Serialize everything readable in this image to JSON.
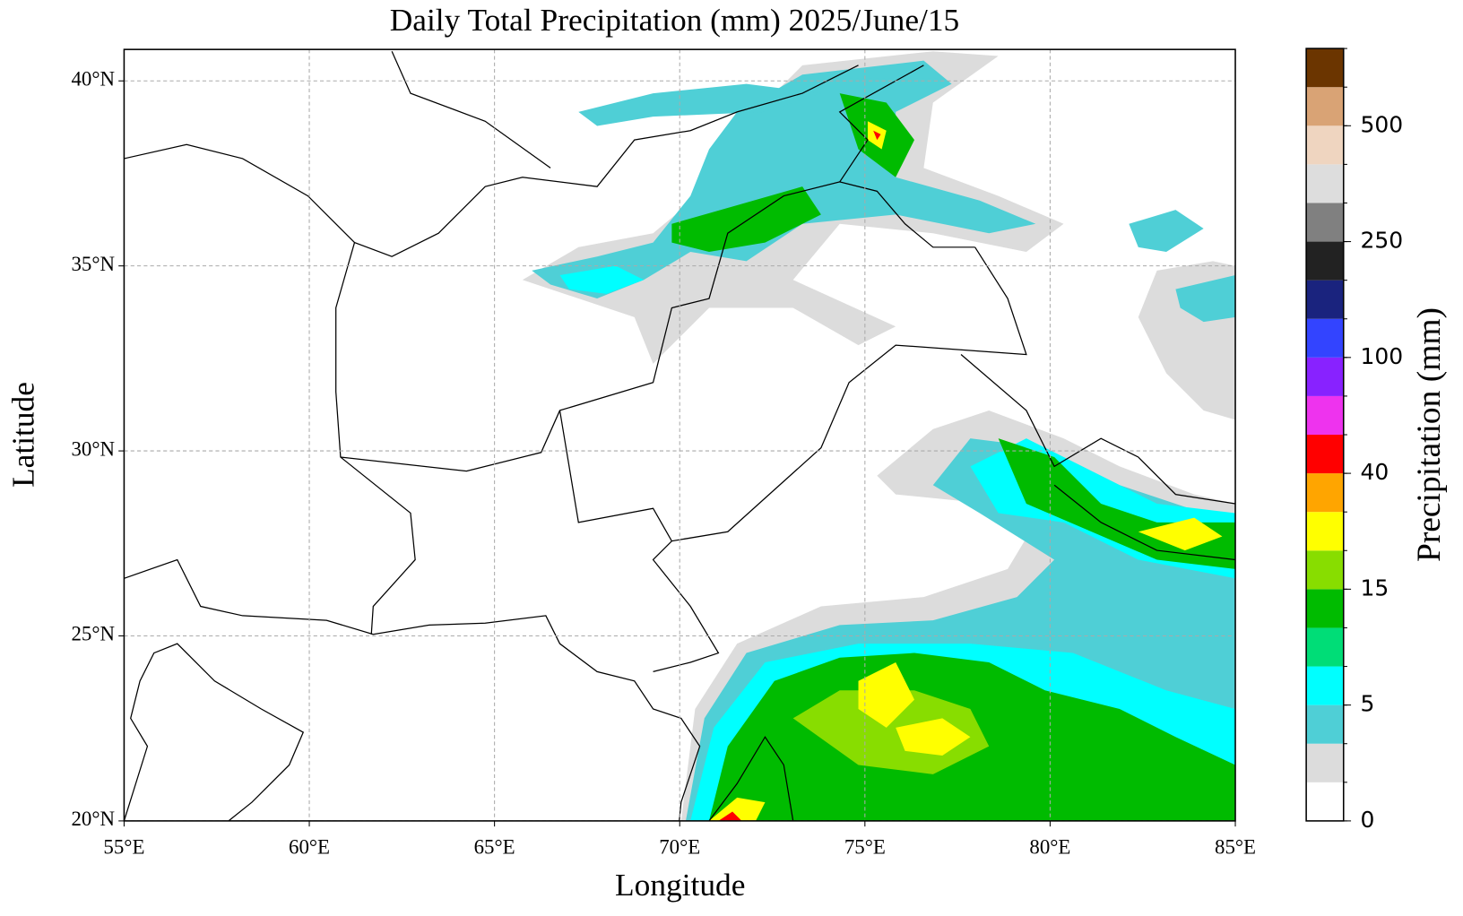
{
  "chart_data": {
    "type": "map",
    "title": "Daily Total Precipitation (mm)  2025/June/15",
    "x_label": "Longitude",
    "y_label": "Latitude",
    "xlim": [
      55,
      85
    ],
    "ylim": [
      20,
      40.85
    ],
    "xticks": [
      {
        "value": 55,
        "label": "55°E"
      },
      {
        "value": 60,
        "label": "60°E"
      },
      {
        "value": 65,
        "label": "65°E"
      },
      {
        "value": 70,
        "label": "70°E"
      },
      {
        "value": 75,
        "label": "75°E"
      },
      {
        "value": 80,
        "label": "80°E"
      },
      {
        "value": 85,
        "label": "85°E"
      }
    ],
    "yticks": [
      {
        "value": 20,
        "label": "20°N"
      },
      {
        "value": 25,
        "label": "25°N"
      },
      {
        "value": 30,
        "label": "30°N"
      },
      {
        "value": 35,
        "label": "35°N"
      },
      {
        "value": 40,
        "label": "40°N"
      }
    ],
    "grid": true,
    "colorbar": {
      "label": "Precipitation (mm)",
      "levels": [
        0,
        1,
        2,
        5,
        7.5,
        10,
        15,
        20,
        30,
        40,
        50,
        75,
        100,
        150,
        200,
        250,
        300,
        400,
        500,
        600,
        700
      ],
      "colors": [
        "#ffffff",
        "#dcdcdc",
        "#4fcfd6",
        "#00ffff",
        "#00dd77",
        "#00bb00",
        "#88dd00",
        "#ffff00",
        "#ffa500",
        "#ff0000",
        "#ee33ee",
        "#8822ff",
        "#3344ff",
        "#1a237e",
        "#222222",
        "#808080",
        "#dddddd",
        "#efd5c0",
        "#d9a375",
        "#6b3500"
      ],
      "ticks": [
        0,
        5,
        15,
        40,
        100,
        250,
        500
      ]
    }
  }
}
